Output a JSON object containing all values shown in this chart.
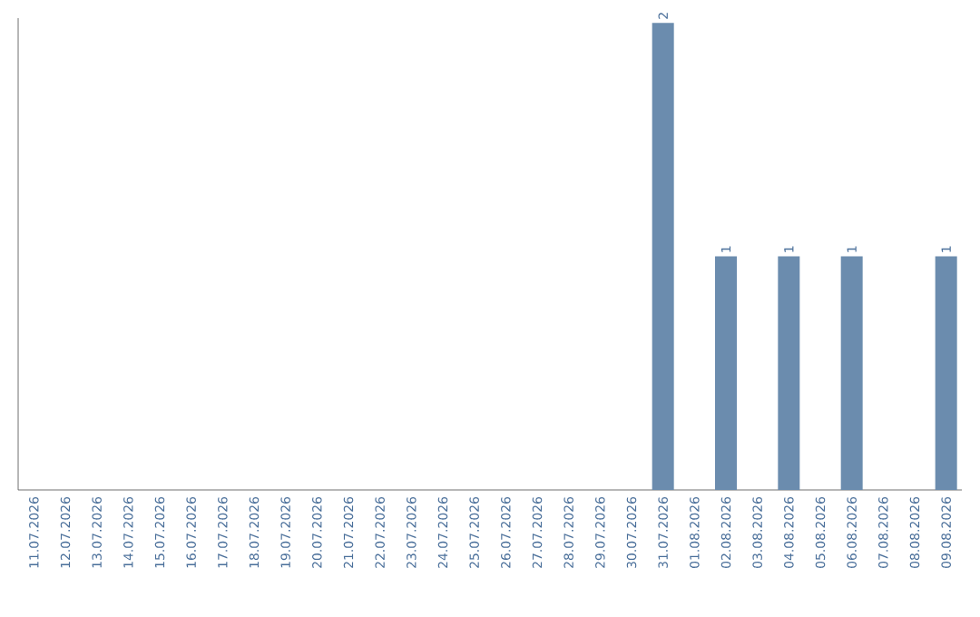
{
  "chart_data": {
    "type": "bar",
    "categories": [
      "11.07.2026",
      "12.07.2026",
      "13.07.2026",
      "14.07.2026",
      "15.07.2026",
      "16.07.2026",
      "17.07.2026",
      "18.07.2026",
      "19.07.2026",
      "20.07.2026",
      "21.07.2026",
      "22.07.2026",
      "23.07.2026",
      "24.07.2026",
      "25.07.2026",
      "26.07.2026",
      "27.07.2026",
      "28.07.2026",
      "29.07.2026",
      "30.07.2026",
      "31.07.2026",
      "01.08.2026",
      "02.08.2026",
      "03.08.2026",
      "04.08.2026",
      "05.08.2026",
      "06.08.2026",
      "07.08.2026",
      "08.08.2026",
      "09.08.2026"
    ],
    "values": [
      null,
      null,
      null,
      null,
      null,
      null,
      null,
      null,
      null,
      null,
      null,
      null,
      null,
      null,
      null,
      null,
      null,
      null,
      null,
      null,
      2,
      null,
      1,
      null,
      1,
      null,
      1,
      null,
      null,
      1
    ],
    "value_labels": [
      null,
      null,
      null,
      null,
      null,
      null,
      null,
      null,
      null,
      null,
      null,
      null,
      null,
      null,
      null,
      null,
      null,
      null,
      null,
      null,
      "2",
      null,
      "1",
      null,
      "1",
      null,
      "1",
      null,
      null,
      "1"
    ],
    "color": "#6b8cae"
  }
}
